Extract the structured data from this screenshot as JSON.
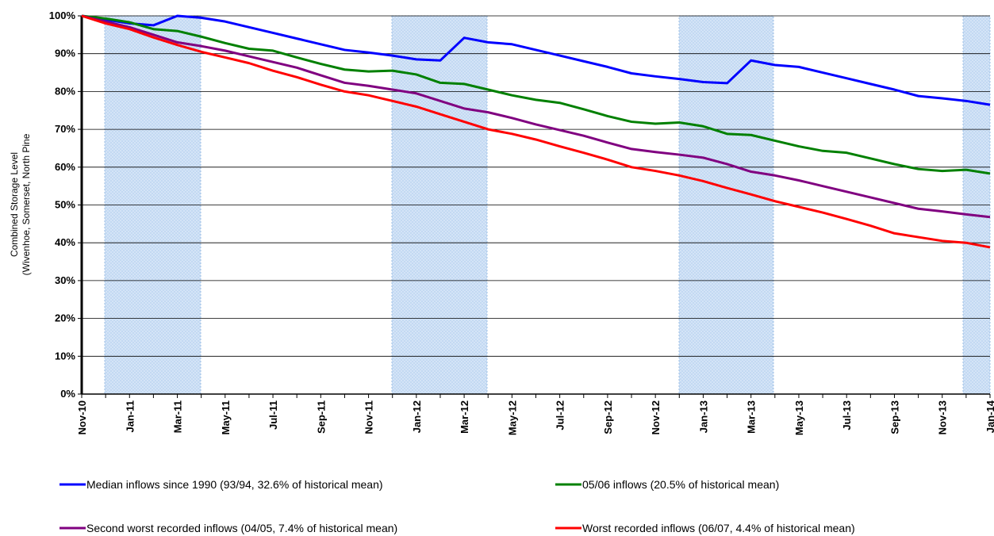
{
  "chart_data": {
    "type": "line",
    "y_label": [
      "Combined Storage Level",
      "(Wivenhoe, Somerset, North Pine"
    ],
    "categories": [
      "Nov-10",
      null,
      "Jan-11",
      null,
      "Mar-11",
      null,
      "May-11",
      null,
      "Jul-11",
      null,
      "Sep-11",
      null,
      "Nov-11",
      null,
      "Jan-12",
      null,
      "Mar-12",
      null,
      "May-12",
      null,
      "Jul-12",
      null,
      "Sep-12",
      null,
      "Nov-12",
      null,
      "Jan-13",
      null,
      "Mar-13",
      null,
      "May-13",
      null,
      "Jul-13",
      null,
      "Sep-13",
      null,
      "Nov-13",
      null,
      "Jan-14"
    ],
    "ylim": [
      0,
      100
    ],
    "yticks": [
      {
        "value": 0,
        "label": "0%"
      },
      {
        "value": 10,
        "label": "10%"
      },
      {
        "value": 20,
        "label": "20%"
      },
      {
        "value": 30,
        "label": "30%"
      },
      {
        "value": 40,
        "label": "40%"
      },
      {
        "value": 50,
        "label": "50%"
      },
      {
        "value": 60,
        "label": "60%"
      },
      {
        "value": 70,
        "label": "70%"
      },
      {
        "value": 80,
        "label": "80%"
      },
      {
        "value": 90,
        "label": "90%"
      },
      {
        "value": 100,
        "label": "100%"
      }
    ],
    "grid": true,
    "series": [
      {
        "name": "Median inflows since 1990 (93/94, 32.6% of historical mean)",
        "color": "#0000ff",
        "values": [
          100,
          99,
          98,
          97.5,
          100,
          99.5,
          98.5,
          97,
          95.5,
          94,
          92.5,
          91,
          90.3,
          89.5,
          88.5,
          88.2,
          94.2,
          93,
          92.5,
          91,
          89.5,
          88,
          86.5,
          84.8,
          84,
          83.3,
          82.5,
          82.2,
          88.2,
          87,
          86.5,
          85,
          83.5,
          82,
          80.5,
          78.8,
          78.2,
          77.5,
          76.5
        ]
      },
      {
        "name": "05/06 inflows (20.5% of historical mean)",
        "color": "#008000",
        "values": [
          100,
          99.3,
          98.3,
          96.5,
          96,
          94.5,
          92.8,
          91.3,
          90.8,
          89,
          87.3,
          85.8,
          85.3,
          85.5,
          84.5,
          82.3,
          82,
          80.5,
          79,
          77.8,
          77,
          75.3,
          73.5,
          72,
          71.5,
          71.8,
          70.8,
          68.8,
          68.5,
          67,
          65.5,
          64.3,
          63.8,
          62.3,
          60.8,
          59.5,
          59,
          59.3,
          58.3
        ]
      },
      {
        "name": "Second worst recorded inflows (04/05, 7.4% of historical mean)",
        "color": "#800080",
        "values": [
          100,
          98.5,
          97,
          95,
          93,
          92,
          90.8,
          89.3,
          87.8,
          86.3,
          84.3,
          82.3,
          81.5,
          80.5,
          79.5,
          77.5,
          75.5,
          74.5,
          73,
          71.3,
          69.8,
          68.3,
          66.5,
          64.8,
          64,
          63.3,
          62.5,
          60.8,
          58.8,
          57.8,
          56.5,
          55,
          53.5,
          52,
          50.5,
          49,
          48.3,
          47.5,
          46.8
        ]
      },
      {
        "name": "Worst recorded inflows (06/07, 4.4% of historical mean)",
        "color": "#ff0000",
        "values": [
          100,
          98,
          96.5,
          94.3,
          92.3,
          90.5,
          89,
          87.5,
          85.5,
          83.8,
          81.8,
          80,
          79,
          77.5,
          76,
          74,
          72,
          70,
          68.8,
          67.3,
          65.5,
          63.8,
          62,
          60,
          59,
          57.8,
          56.3,
          54.5,
          52.8,
          51,
          49.5,
          48,
          46.3,
          44.5,
          42.5,
          41.5,
          40.5,
          40,
          38.8
        ]
      }
    ]
  }
}
